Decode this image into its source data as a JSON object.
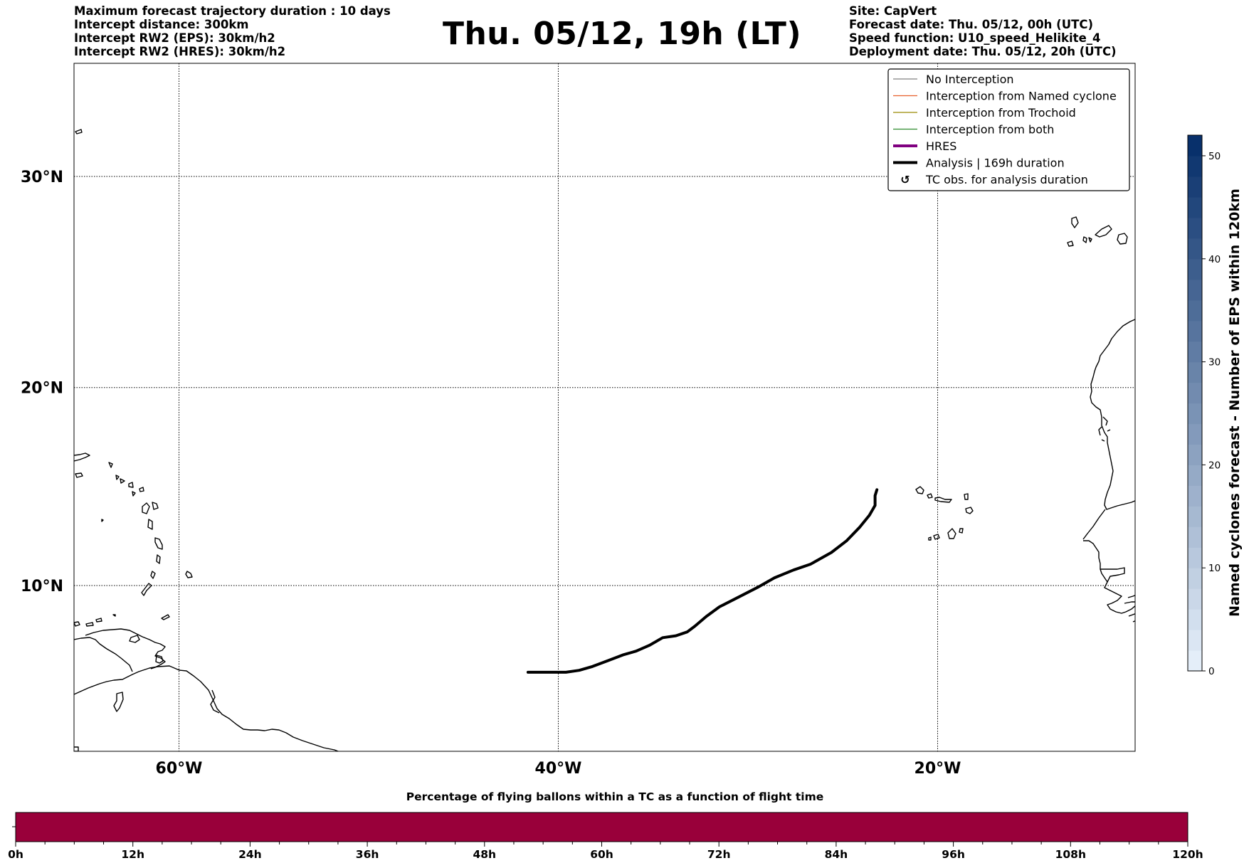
{
  "header_left": [
    "Maximum forecast trajectory duration : 10 days",
    "Intercept distance: 300km",
    "Intercept RW2 (EPS):  30km/h2",
    "Intercept RW2 (HRES): 30km/h2"
  ],
  "title": "Thu. 05/12, 19h (LT)",
  "header_right": [
    "Site: CapVert",
    "Forecast date: Thu. 05/12, 00h (UTC)",
    "Speed function: U10_speed_Helikite_4",
    "Deployment date: Thu. 05/12, 20h (UTC)"
  ],
  "map": {
    "lat_labels": [
      "30°N",
      "20°N",
      "10°N"
    ],
    "lon_labels": [
      "60°W",
      "40°W",
      "20°W"
    ],
    "gridlines": {
      "lons": [
        -60,
        -40,
        -20
      ],
      "lats": [
        30,
        20,
        10
      ],
      "style": "dotted"
    },
    "extent": {
      "lon_min": -65,
      "lon_max": -15,
      "lat_min": 5,
      "lat_max": 35
    }
  },
  "legend": {
    "placement": "top-right",
    "items": [
      {
        "label": "No Interception",
        "color": "#808080",
        "kind": "thin-line"
      },
      {
        "label": "Interception from Named cyclone",
        "color": "#e8602c",
        "kind": "thin-line"
      },
      {
        "label": "Interception from Trochoid",
        "color": "#9a8a00",
        "kind": "thin-line"
      },
      {
        "label": "Interception from both",
        "color": "#2e8b2e",
        "kind": "thin-line"
      },
      {
        "label": "HRES",
        "color": "#800080",
        "kind": "thick-line"
      },
      {
        "label": "Analysis | 169h duration",
        "color": "#000000",
        "kind": "thick-line"
      },
      {
        "label": "TC obs. for analysis duration",
        "color": "#000000",
        "kind": "marker",
        "icon": "cyclone-icon"
      }
    ]
  },
  "analysis_track": {
    "color": "#000000",
    "points": [
      [
        -23.2,
        14.9
      ],
      [
        -23.3,
        14.6
      ],
      [
        -23.3,
        14.1
      ],
      [
        -23.6,
        13.6
      ],
      [
        -24.1,
        13.0
      ],
      [
        -24.8,
        12.3
      ],
      [
        -25.6,
        11.7
      ],
      [
        -26.7,
        11.1
      ],
      [
        -27.6,
        10.8
      ],
      [
        -28.6,
        10.4
      ],
      [
        -29.5,
        9.9
      ],
      [
        -30.5,
        9.4
      ],
      [
        -31.5,
        8.9
      ],
      [
        -32.2,
        8.4
      ],
      [
        -32.8,
        7.9
      ],
      [
        -33.2,
        7.6
      ],
      [
        -33.8,
        7.4
      ],
      [
        -34.5,
        7.3
      ],
      [
        -35.2,
        6.9
      ],
      [
        -35.9,
        6.6
      ],
      [
        -36.6,
        6.4
      ],
      [
        -37.4,
        6.1
      ],
      [
        -38.2,
        5.8
      ],
      [
        -38.9,
        5.6
      ],
      [
        -39.6,
        5.5
      ],
      [
        -40.5,
        5.5
      ],
      [
        -41.4,
        5.5
      ],
      [
        -41.6,
        5.5
      ]
    ]
  },
  "colorbar": {
    "label": "Named cyclones forecast - Number of EPS within 120km",
    "ticks": [
      "0",
      "10",
      "20",
      "30",
      "40",
      "50"
    ],
    "range": [
      0,
      52
    ],
    "color_low": "#e4eef9",
    "color_high": "#08306b"
  },
  "timebar": {
    "title": "Percentage of flying ballons within a TC as a function of flight time",
    "color": "#99003a",
    "ticks": [
      "0h",
      "12h",
      "24h",
      "36h",
      "48h",
      "60h",
      "72h",
      "84h",
      "96h",
      "108h",
      "120h"
    ]
  }
}
